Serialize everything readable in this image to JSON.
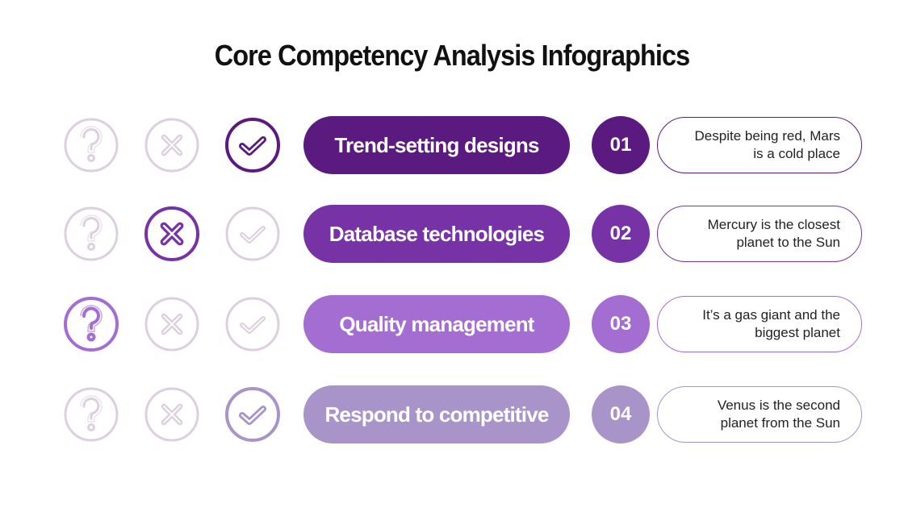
{
  "header": {
    "title": "Core Competency Analysis Infographics"
  },
  "rows": [
    {
      "label": "Trend-setting designs",
      "number": "01",
      "description": [
        "Despite being red, Mars",
        "is a cold place"
      ]
    },
    {
      "label": "Database technologies",
      "number": "02",
      "description": [
        "Mercury is the closest",
        "planet to the Sun"
      ]
    },
    {
      "label": "Quality management",
      "number": "03",
      "description": [
        "It’s a gas giant and the",
        "biggest planet"
      ]
    },
    {
      "label": "Respond to competitive",
      "number": "04",
      "description": [
        "Venus is the second",
        "planet from the Sun"
      ]
    }
  ]
}
